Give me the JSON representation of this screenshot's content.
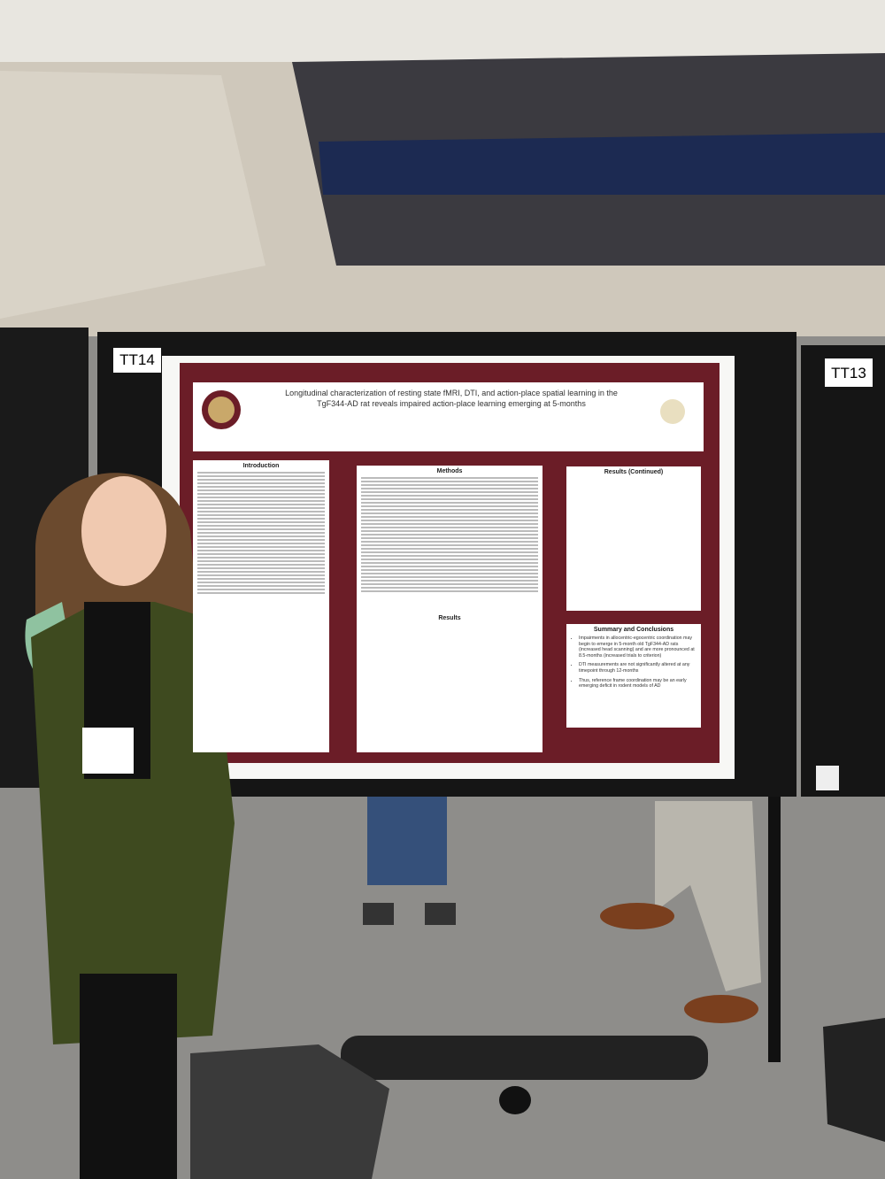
{
  "signs": {
    "left_board": "TT14",
    "right_board": "TT13"
  },
  "poster": {
    "title_lines": [
      "Longitudinal characterization of resting state fMRI, DTI, and action-place spatial learning in the",
      "TgF344-AD rat reveals impaired action-place learning emerging at 5-months"
    ],
    "sections": [
      "Introduction",
      "Methods",
      "Results (Continued)",
      "Results",
      "Summary and Conclusions"
    ],
    "summary_bullets": [
      "Impairments in allocentric-egocentric coordination may begin to emerge in 5-month old TgF344-AD rats (increased head scanning) and are more pronounced at 8.5-months (increased trials to criterion)",
      "DTI measurements are not significantly altered at any timepoint through 12-months",
      "Thus, reference frame coordination may be an early emerging deficit in rodent models of AD"
    ]
  }
}
